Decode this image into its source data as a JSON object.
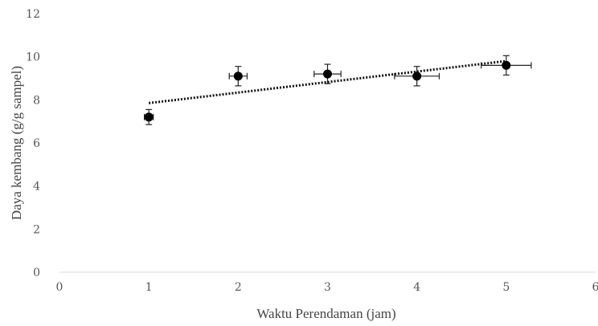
{
  "chart_data": {
    "type": "scatter",
    "xlabel": "Waktu Perendaman (jam)",
    "ylabel": "Daya kembang (g/g sampel)",
    "xlim": [
      0,
      6
    ],
    "ylim": [
      0,
      12
    ],
    "x_ticks": [
      "0",
      "1",
      "2",
      "3",
      "4",
      "5",
      "6"
    ],
    "y_ticks": [
      "0",
      "2",
      "4",
      "6",
      "8",
      "10",
      "12"
    ],
    "grid": false,
    "points": [
      {
        "x": 1,
        "y": 7.2,
        "y_err": 0.35,
        "x_err": 0.05
      },
      {
        "x": 2,
        "y": 9.1,
        "y_err": 0.45,
        "x_err": 0.1
      },
      {
        "x": 3,
        "y": 9.2,
        "y_err": 0.45,
        "x_err": 0.15
      },
      {
        "x": 4,
        "y": 9.1,
        "y_err": 0.45,
        "x_err": 0.25
      },
      {
        "x": 5,
        "y": 9.6,
        "y_err": 0.45,
        "x_err": 0.28
      }
    ],
    "trendline": {
      "type": "linear",
      "from": [
        1,
        7.85
      ],
      "to": [
        5,
        9.8
      ],
      "style": "dotted"
    },
    "colors": {
      "points": "#000000",
      "trendline": "#111111",
      "axis": "#d9d9d9",
      "text": "#555555"
    }
  }
}
